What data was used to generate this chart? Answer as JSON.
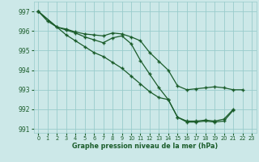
{
  "xlabel": "Graphe pression niveau de la mer (hPa)",
  "bg_color": "#cce8e8",
  "grid_color": "#99cccc",
  "line_color": "#1a5c2a",
  "marker_color": "#1a5c2a",
  "xlim": [
    -0.5,
    23.5
  ],
  "ylim": [
    990.8,
    997.5
  ],
  "yticks": [
    991,
    992,
    993,
    994,
    995,
    996,
    997
  ],
  "xticks": [
    0,
    1,
    2,
    3,
    4,
    5,
    6,
    7,
    8,
    9,
    10,
    11,
    12,
    13,
    14,
    15,
    16,
    17,
    18,
    19,
    20,
    21,
    22,
    23
  ],
  "line1": [
    997.0,
    996.5,
    996.2,
    996.1,
    995.95,
    995.85,
    995.8,
    995.75,
    995.9,
    995.85,
    995.7,
    995.5,
    994.9,
    994.45,
    994.0,
    993.2,
    993.0,
    993.05,
    993.1,
    993.15,
    993.1,
    993.0,
    993.0,
    null
  ],
  "line2": [
    997.0,
    null,
    996.2,
    996.05,
    995.9,
    995.7,
    995.55,
    995.4,
    995.65,
    995.75,
    995.35,
    994.5,
    993.8,
    993.1,
    992.5,
    991.6,
    991.4,
    991.4,
    991.45,
    991.4,
    991.5,
    992.0,
    null,
    null
  ],
  "line3": [
    997.0,
    null,
    null,
    995.8,
    995.5,
    995.2,
    994.9,
    994.7,
    994.4,
    994.1,
    993.7,
    993.3,
    992.9,
    992.6,
    992.5,
    991.6,
    991.35,
    991.35,
    991.4,
    991.35,
    991.4,
    991.95,
    null,
    null
  ]
}
